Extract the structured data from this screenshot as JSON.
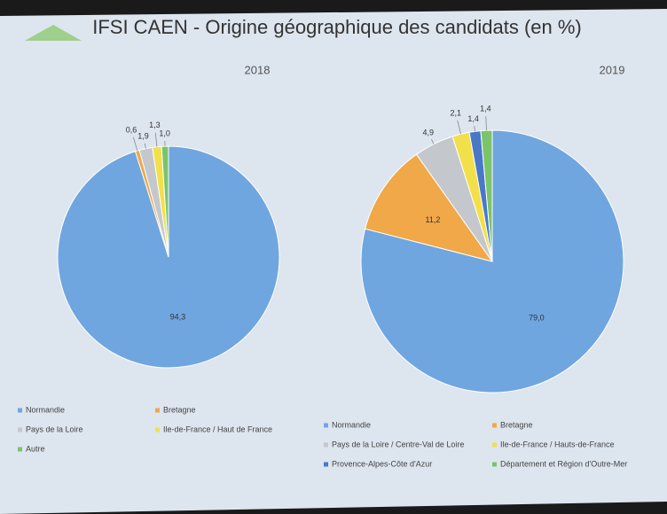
{
  "title": "IFSI CAEN - Origine géographique des candidats (en %)",
  "chart_data": [
    {
      "type": "pie",
      "title": "2018",
      "categories": [
        "Normandie",
        "Bretagne",
        "Pays de la Loire",
        "Ile-de-France / Haut de France",
        "Autre"
      ],
      "values": [
        94.3,
        0.6,
        1.9,
        1.3,
        1.0
      ],
      "value_labels": [
        "94,3",
        "0,6",
        "1,9",
        "1,3",
        "1,0"
      ],
      "colors": [
        "#6fa6e0",
        "#f0a848",
        "#c4c8cc",
        "#f2e04a",
        "#7cc46a"
      ]
    },
    {
      "type": "pie",
      "title": "2019",
      "categories": [
        "Normandie",
        "Bretagne",
        "Pays de la Loire / Centre-Val de Loire",
        "Ile-de-France / Hauts-de-France",
        "Provence-Alpes-Côte d'Azur",
        "Département et Région d'Outre-Mer"
      ],
      "values": [
        79.0,
        11.2,
        4.9,
        2.1,
        1.4,
        1.4
      ],
      "value_labels": [
        "79,0",
        "11,2",
        "4,9",
        "2,1",
        "1,4",
        "1,4"
      ],
      "colors": [
        "#6fa6e0",
        "#f0a848",
        "#c4c8cc",
        "#f2e04a",
        "#4a78c8",
        "#7cc46a"
      ]
    }
  ]
}
